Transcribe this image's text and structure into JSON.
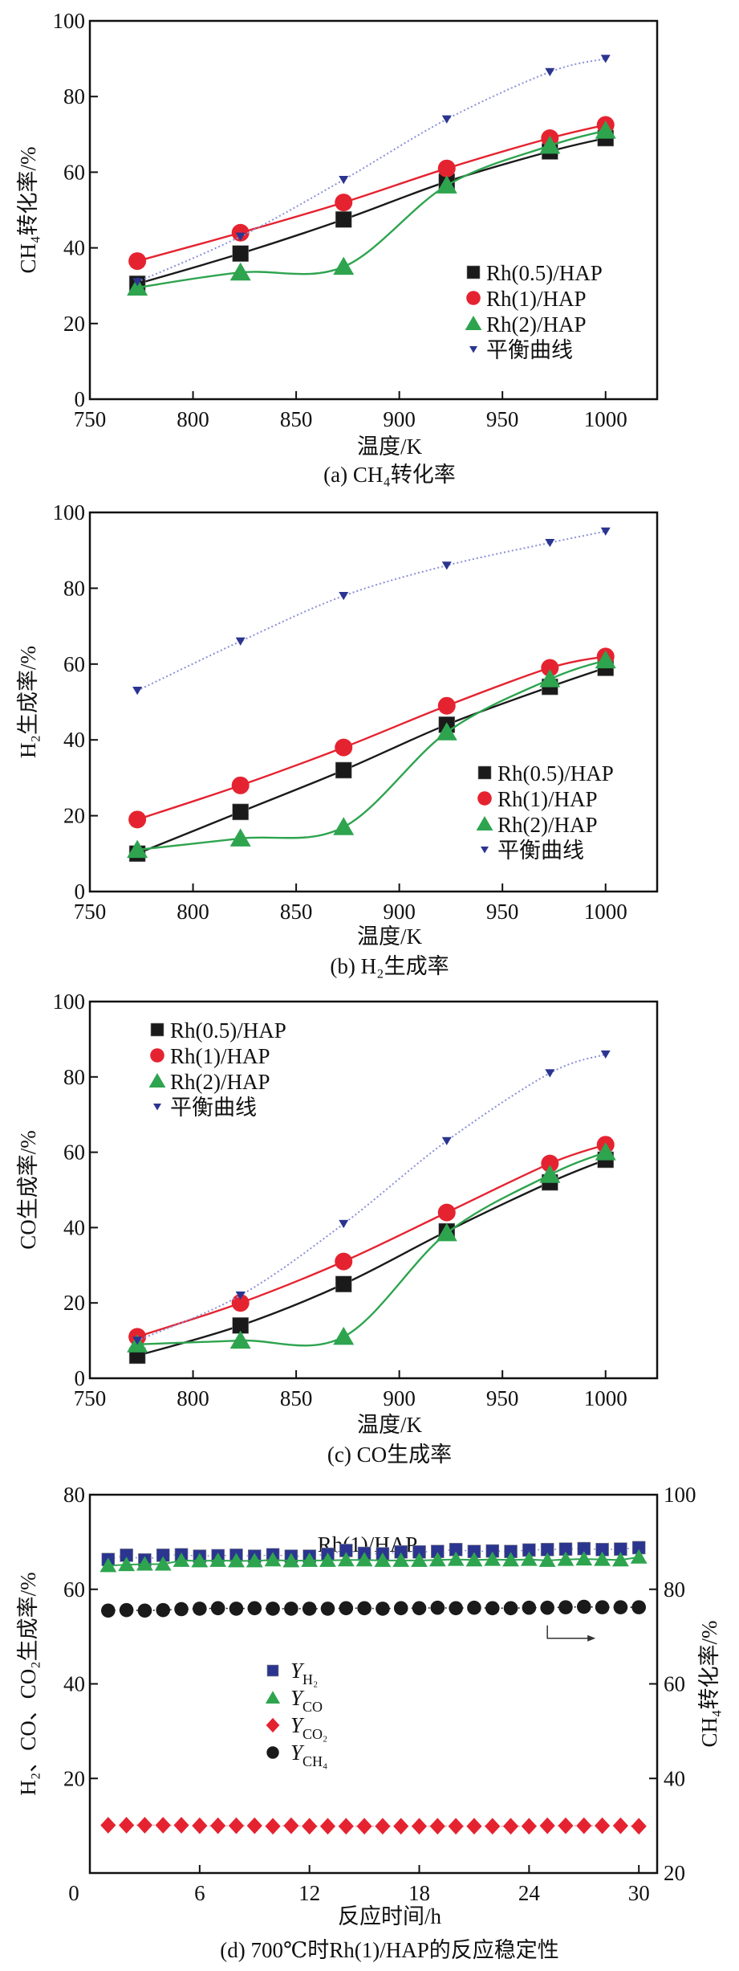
{
  "figure": {
    "colors": {
      "rh05": "#1a1a1a",
      "rh1": "#e52330",
      "rh2": "#2ea44f",
      "eq": "#2b3590",
      "eq_line": "#8a8fd8",
      "axis": "#111111"
    }
  },
  "chart_data": [
    {
      "id": "a",
      "type": "line",
      "caption": "(a) CH₄转化率",
      "xlabel": "温度/K",
      "ylabel": "CH₄转化率/%",
      "xlim": [
        750,
        1025
      ],
      "ylim": [
        0,
        100
      ],
      "xticks": [
        750,
        800,
        850,
        900,
        950,
        1000
      ],
      "yticks": [
        0,
        20,
        40,
        60,
        80,
        100
      ],
      "grid": false,
      "legend_position": "right-middle",
      "x": [
        773,
        823,
        873,
        923,
        973,
        1000
      ],
      "series": [
        {
          "name": "Rh(0.5)/HAP",
          "marker": "square",
          "color_key": "rh05",
          "values": [
            30.5,
            38.5,
            47.5,
            57.5,
            65.5,
            69
          ]
        },
        {
          "name": "Rh(1)/HAP",
          "marker": "circle",
          "color_key": "rh1",
          "values": [
            36.5,
            44,
            52,
            61,
            69,
            72.5
          ]
        },
        {
          "name": "Rh(2)/HAP",
          "marker": "triangle-up",
          "color_key": "rh2",
          "values": [
            29.5,
            33.5,
            35,
            56.5,
            67,
            71
          ]
        },
        {
          "name": "平衡曲线",
          "marker": "triangle-down",
          "color_key": "eq",
          "values": [
            31,
            43,
            58,
            74,
            86.5,
            90
          ]
        }
      ]
    },
    {
      "id": "b",
      "type": "line",
      "caption": "(b) H₂生成率",
      "xlabel": "温度/K",
      "ylabel": "H₂生成率/%",
      "xlim": [
        750,
        1025
      ],
      "ylim": [
        0,
        100
      ],
      "xticks": [
        750,
        800,
        850,
        900,
        950,
        1000
      ],
      "yticks": [
        0,
        20,
        40,
        60,
        80,
        100
      ],
      "grid": false,
      "legend_position": "right-middle",
      "x": [
        773,
        823,
        873,
        923,
        973,
        1000
      ],
      "series": [
        {
          "name": "Rh(0.5)/HAP",
          "marker": "square",
          "color_key": "rh05",
          "values": [
            10,
            21,
            32,
            44,
            54,
            59
          ]
        },
        {
          "name": "Rh(1)/HAP",
          "marker": "circle",
          "color_key": "rh1",
          "values": [
            19,
            28,
            38,
            49,
            59,
            62
          ]
        },
        {
          "name": "Rh(2)/HAP",
          "marker": "triangle-up",
          "color_key": "rh2",
          "values": [
            11,
            14,
            17,
            42,
            56,
            61
          ]
        },
        {
          "name": "平衡曲线",
          "marker": "triangle-down",
          "color_key": "eq",
          "values": [
            53,
            66,
            78,
            86,
            92,
            95
          ]
        }
      ]
    },
    {
      "id": "c",
      "type": "line",
      "caption": "(c) CO生成率",
      "xlabel": "温度/K",
      "ylabel": "CO生成率/%",
      "xlim": [
        750,
        1025
      ],
      "ylim": [
        0,
        100
      ],
      "xticks": [
        750,
        800,
        850,
        900,
        950,
        1000
      ],
      "yticks": [
        0,
        20,
        40,
        60,
        80,
        100
      ],
      "grid": false,
      "legend_position": "top-left",
      "x": [
        773,
        823,
        873,
        923,
        973,
        1000
      ],
      "series": [
        {
          "name": "Rh(0.5)/HAP",
          "marker": "square",
          "color_key": "rh05",
          "values": [
            6,
            14,
            25,
            39,
            52,
            58
          ]
        },
        {
          "name": "Rh(1)/HAP",
          "marker": "circle",
          "color_key": "rh1",
          "values": [
            11,
            20,
            31,
            44,
            57,
            62
          ]
        },
        {
          "name": "Rh(2)/HAP",
          "marker": "triangle-up",
          "color_key": "rh2",
          "values": [
            9,
            10,
            11,
            38.5,
            54,
            60
          ]
        },
        {
          "name": "平衡曲线",
          "marker": "triangle-down",
          "color_key": "eq",
          "values": [
            10,
            22,
            41,
            63,
            81,
            86
          ]
        }
      ]
    },
    {
      "id": "d",
      "type": "scatter",
      "caption": "(d) 700℃时Rh(1)/HAP的反应稳定性",
      "annotation": "Rh(1)/HAP",
      "xlabel": "反应时间/h",
      "ylabel": "H₂、CO、CO₂生成率/%",
      "ylabel_right": "CH₄转化率/%",
      "xlim": [
        0,
        31
      ],
      "ylim": [
        0,
        80
      ],
      "ylim_right": [
        20,
        100
      ],
      "xticks": [
        0,
        6,
        12,
        18,
        24,
        30
      ],
      "yticks": [
        20,
        40,
        60,
        80
      ],
      "yticks_right": [
        20,
        40,
        60,
        80,
        100
      ],
      "grid": false,
      "legend_position": "center-left",
      "x": [
        1,
        2,
        3,
        4,
        5,
        6,
        7,
        8,
        9,
        10,
        11,
        12,
        13,
        14,
        15,
        16,
        17,
        18,
        19,
        20,
        21,
        22,
        23,
        24,
        25,
        26,
        27,
        28,
        29,
        30
      ],
      "series": [
        {
          "name": "Y_H2",
          "label_main": "Y",
          "label_sub": "H₂",
          "marker": "square",
          "color_key": "eq",
          "axis": "left",
          "values": [
            66.3,
            67.2,
            66.2,
            67.2,
            67.3,
            67.0,
            67.1,
            67.2,
            67.0,
            67.3,
            67.0,
            67.0,
            67.4,
            68.2,
            67.6,
            67.5,
            67.9,
            67.9,
            68.0,
            68.4,
            68.0,
            68.1,
            68.0,
            68.3,
            68.4,
            68.5,
            68.6,
            68.4,
            68.5,
            68.8
          ]
        },
        {
          "name": "Y_CO",
          "label_main": "Y",
          "label_sub": "CO",
          "marker": "triangle-up",
          "color_key": "rh2",
          "axis": "left",
          "values": [
            65.0,
            65.2,
            65.3,
            65.3,
            66.1,
            66.0,
            66.1,
            66.0,
            66.0,
            66.2,
            66.0,
            66.1,
            66.1,
            66.2,
            66.2,
            66.1,
            66.1,
            66.1,
            66.2,
            66.3,
            66.2,
            66.3,
            66.2,
            66.3,
            66.1,
            66.3,
            66.4,
            66.3,
            66.2,
            66.8
          ]
        },
        {
          "name": "Y_CO2",
          "label_main": "Y",
          "label_sub": "CO₂",
          "marker": "diamond",
          "color_key": "rh1",
          "axis": "left",
          "values": [
            10.1,
            10.1,
            10.1,
            10.1,
            10.1,
            10.0,
            10.0,
            10.0,
            10.0,
            9.9,
            10.0,
            9.9,
            9.9,
            9.9,
            9.9,
            9.9,
            9.9,
            9.9,
            9.9,
            9.9,
            9.9,
            9.9,
            9.9,
            9.9,
            10.0,
            10.0,
            10.0,
            10.0,
            10.0,
            9.9
          ]
        },
        {
          "name": "Y_CH4",
          "label_main": "Y",
          "label_sub": "CH₄",
          "marker": "circle",
          "color_key": "rh05",
          "axis": "right",
          "values": [
            75.5,
            75.6,
            75.5,
            75.6,
            75.8,
            75.9,
            76.0,
            75.9,
            76.0,
            75.9,
            75.9,
            75.9,
            75.9,
            76.0,
            76.0,
            75.9,
            76.0,
            76.0,
            76.1,
            76.0,
            76.1,
            76.0,
            76.0,
            76.1,
            76.1,
            76.2,
            76.3,
            76.2,
            76.2,
            76.2
          ]
        }
      ]
    }
  ]
}
